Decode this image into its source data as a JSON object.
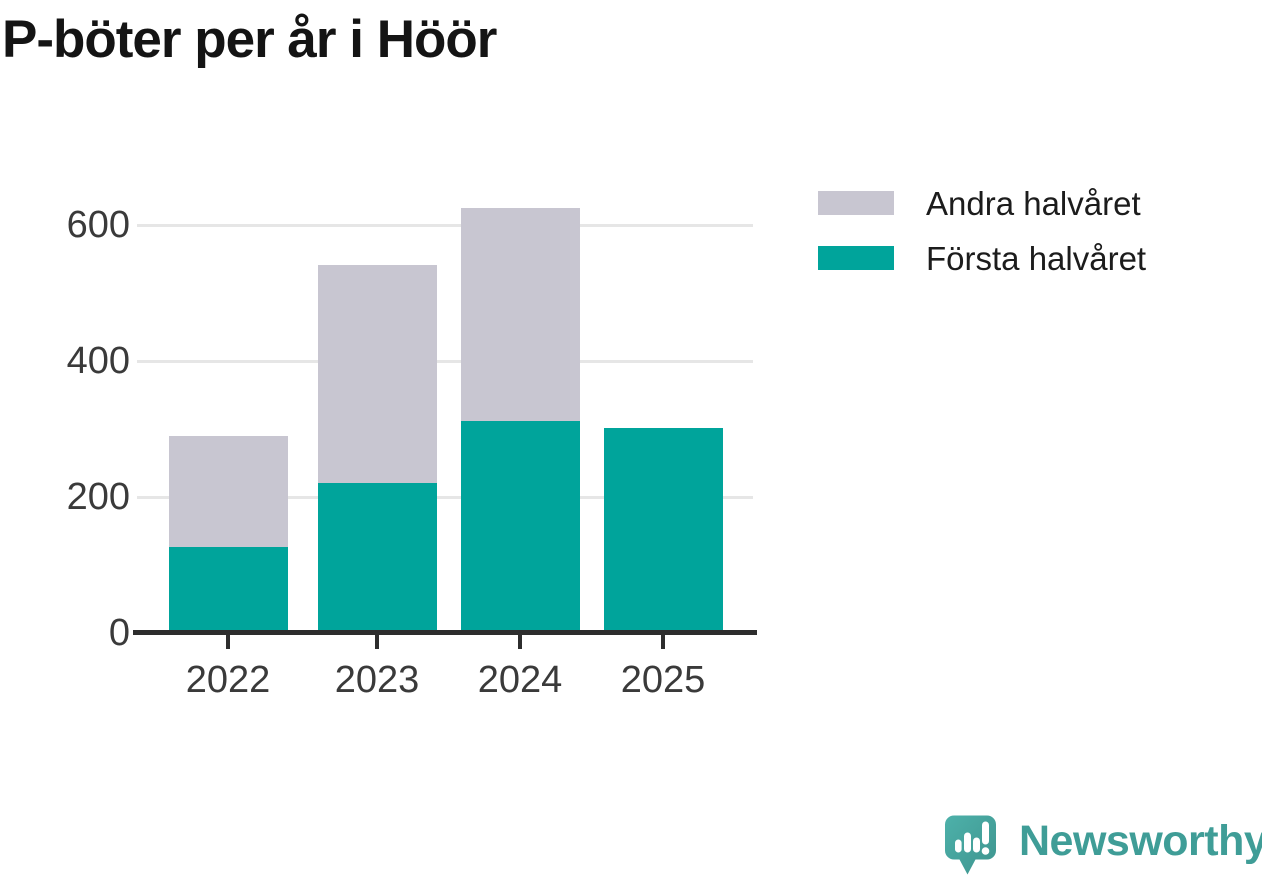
{
  "title": "P-böter per år i Höör",
  "colors": {
    "first_half": "#00a49b",
    "second_half": "#c8c6d1",
    "grid": "#e6e6e6",
    "axis": "#2d2d2d",
    "tick_label": "#3a3a3a",
    "legend_text": "#1c1c1c",
    "title_text": "#141414",
    "brand_text": "#3f9d97",
    "logo_fill": "#48a9a2"
  },
  "legend": [
    {
      "label": "Andra halvåret",
      "color_key": "second_half"
    },
    {
      "label": "Första halvåret",
      "color_key": "first_half"
    }
  ],
  "brand": {
    "wordmark": "Newsworthy"
  },
  "chart_data": {
    "type": "bar",
    "stacked": true,
    "title": "P-böter per år i Höör",
    "categories": [
      "2022",
      "2023",
      "2024",
      "2025"
    ],
    "series": [
      {
        "name": "Första halvåret",
        "color_key": "first_half",
        "values": [
          126,
          220,
          312,
          301
        ]
      },
      {
        "name": "Andra halvåret",
        "color_key": "second_half",
        "values": [
          163,
          321,
          313,
          0
        ]
      }
    ],
    "totals": [
      289,
      541,
      625,
      301
    ],
    "y_ticks": [
      0,
      200,
      400,
      600
    ],
    "ylim": [
      0,
      660
    ],
    "xlabel": "",
    "ylabel": "",
    "grid": "horizontal",
    "legend_position": "top-right"
  }
}
